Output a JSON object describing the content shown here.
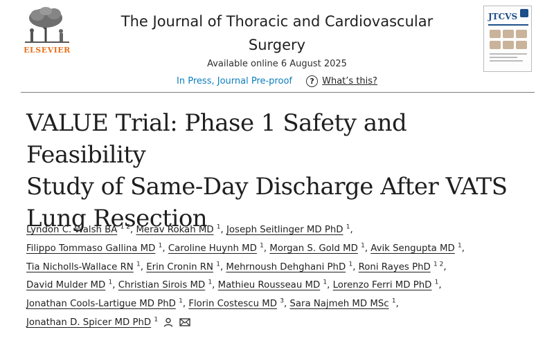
{
  "header": {
    "publisher_logo_text": "ELSEVIER",
    "journal_title_line1": "The Journal of Thoracic and Cardiovascular",
    "journal_title_line2": "Surgery",
    "available_online": "Available online 6 August 2025",
    "status_link": "In Press, Journal Pre-proof",
    "whats_this": "What’s this?",
    "cover_name": "JTCVS"
  },
  "article": {
    "title_line1": "VALUE Trial: Phase 1 Safety and Feasibility",
    "title_line2": "Study of Same-Day Discharge After VATS",
    "title_line3": "Lung Resection"
  },
  "authors": [
    {
      "name": "Lyndon C. Walsh BA",
      "aff": "1 2"
    },
    {
      "name": "Merav Rokah MD",
      "aff": "1"
    },
    {
      "name": "Joseph Seitlinger MD PhD",
      "aff": "1"
    },
    {
      "name": "Filippo Tommaso Gallina MD",
      "aff": "1"
    },
    {
      "name": "Caroline Huynh MD",
      "aff": "1"
    },
    {
      "name": "Morgan S. Gold MD",
      "aff": "1"
    },
    {
      "name": "Avik Sengupta MD",
      "aff": "1"
    },
    {
      "name": "Tia Nicholls-Wallace RN",
      "aff": "1"
    },
    {
      "name": "Erin Cronin RN",
      "aff": "1"
    },
    {
      "name": "Mehrnoush Dehghani PhD",
      "aff": "1"
    },
    {
      "name": "Roni Rayes PhD",
      "aff": "1 2"
    },
    {
      "name": "David Mulder MD",
      "aff": "1"
    },
    {
      "name": "Christian Sirois MD",
      "aff": "1"
    },
    {
      "name": "Mathieu Rousseau MD",
      "aff": "1"
    },
    {
      "name": "Lorenzo Ferri MD PhD",
      "aff": "1"
    },
    {
      "name": "Jonathan Cools-Lartigue MD PhD",
      "aff": "1"
    },
    {
      "name": "Florin Costescu MD",
      "aff": "3"
    },
    {
      "name": "Sara Najmeh MD MSc",
      "aff": "1"
    },
    {
      "name": "Jonathan D. Spicer MD PhD",
      "aff": "1"
    }
  ],
  "icons": {
    "corresponding_author": "person-icon",
    "email": "mail-icon",
    "help": "question-circle-icon"
  },
  "colors": {
    "elsevier_orange": "#e9711c",
    "link_blue": "#0c7dbb",
    "cover_blue": "#1d4f8a"
  }
}
